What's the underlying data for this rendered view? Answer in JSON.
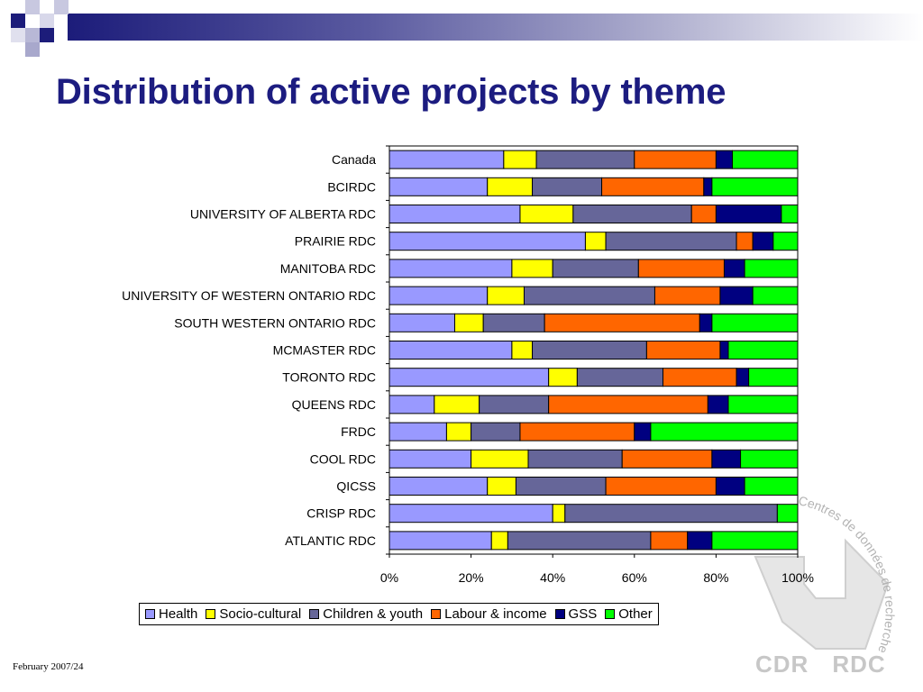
{
  "title": "Distribution of active projects by theme",
  "footer": {
    "date": "February 2007/24"
  },
  "watermark": {
    "arc_text": "Centres de données de recherche · Research Data Centres",
    "labels": [
      "CDR",
      "RDC"
    ]
  },
  "chart_data": {
    "type": "bar",
    "orientation": "horizontal",
    "stacked": "percent",
    "title": "",
    "xlabel": "",
    "ylabel": "",
    "xlim": [
      0,
      100
    ],
    "x_ticks": [
      "0%",
      "20%",
      "40%",
      "60%",
      "80%",
      "100%"
    ],
    "legend_position": "bottom",
    "grid": false,
    "categories": [
      "Canada",
      "BCIRDC",
      "UNIVERSITY OF ALBERTA RDC",
      "PRAIRIE RDC",
      "MANITOBA RDC",
      "UNIVERSITY OF WESTERN ONTARIO RDC",
      "SOUTH WESTERN ONTARIO RDC",
      "MCMASTER RDC",
      "TORONTO RDC",
      "QUEENS RDC",
      "FRDC",
      "COOL RDC",
      "QICSS",
      "CRISP RDC",
      "ATLANTIC RDC"
    ],
    "series": [
      {
        "name": "Health",
        "color": "#9999ff",
        "values": [
          28,
          24,
          32,
          48,
          30,
          24,
          16,
          30,
          39,
          11,
          14,
          20,
          24,
          40,
          25
        ]
      },
      {
        "name": "Socio-cultural",
        "color": "#ffff00",
        "values": [
          8,
          11,
          13,
          5,
          10,
          9,
          7,
          5,
          7,
          11,
          6,
          14,
          7,
          3,
          4
        ]
      },
      {
        "name": "Children & youth",
        "color": "#666699",
        "values": [
          24,
          17,
          29,
          32,
          21,
          32,
          15,
          28,
          21,
          17,
          12,
          23,
          22,
          52,
          35
        ]
      },
      {
        "name": "Labour & income",
        "color": "#ff6600",
        "values": [
          20,
          25,
          6,
          4,
          21,
          16,
          38,
          18,
          18,
          39,
          28,
          22,
          27,
          0,
          9
        ]
      },
      {
        "name": "GSS",
        "color": "#000080",
        "values": [
          4,
          2,
          16,
          5,
          5,
          8,
          3,
          2,
          3,
          5,
          4,
          7,
          7,
          0,
          6
        ]
      },
      {
        "name": "Other",
        "color": "#00ff00",
        "values": [
          16,
          21,
          4,
          6,
          13,
          11,
          21,
          17,
          12,
          17,
          36,
          14,
          13,
          5,
          21
        ]
      }
    ]
  }
}
